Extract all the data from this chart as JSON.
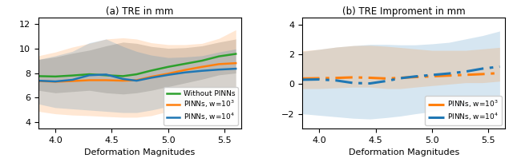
{
  "x": [
    3.85,
    4.0,
    4.15,
    4.3,
    4.45,
    4.6,
    4.72,
    4.85,
    5.0,
    5.15,
    5.3,
    5.45,
    5.6
  ],
  "panel_a": {
    "title": "(a) TRE in mm",
    "xlabel": "Deformation Magnitudes",
    "xlim": [
      3.85,
      5.65
    ],
    "ylim": [
      3.5,
      12.5
    ],
    "yticks": [
      4,
      6,
      8,
      10,
      12
    ],
    "xticks": [
      4.0,
      4.5,
      5.0,
      5.5
    ],
    "green_mean": [
      7.75,
      7.72,
      7.8,
      7.9,
      7.82,
      7.75,
      7.9,
      8.2,
      8.5,
      8.75,
      9.0,
      9.35,
      9.55
    ],
    "green_low": [
      6.6,
      6.4,
      6.5,
      6.6,
      6.4,
      6.3,
      6.4,
      6.6,
      6.9,
      7.2,
      7.5,
      7.85,
      8.0
    ],
    "green_high": [
      9.1,
      9.3,
      9.6,
      9.85,
      10.2,
      10.5,
      10.4,
      10.15,
      10.0,
      10.05,
      10.2,
      10.5,
      10.75
    ],
    "orange_mean": [
      7.35,
      7.3,
      7.35,
      7.42,
      7.42,
      7.38,
      7.42,
      7.7,
      7.95,
      8.25,
      8.5,
      8.72,
      8.8
    ],
    "orange_low": [
      4.9,
      4.7,
      4.6,
      4.55,
      4.48,
      4.42,
      4.42,
      4.55,
      4.9,
      5.3,
      5.7,
      5.9,
      6.1
    ],
    "orange_high": [
      9.4,
      9.7,
      10.1,
      10.4,
      10.75,
      10.85,
      10.75,
      10.45,
      10.3,
      10.3,
      10.4,
      10.8,
      11.5
    ],
    "blue_mean": [
      7.38,
      7.32,
      7.45,
      7.82,
      7.88,
      7.52,
      7.38,
      7.62,
      7.85,
      8.05,
      8.18,
      8.28,
      8.35
    ],
    "blue_low": [
      5.5,
      5.2,
      5.1,
      5.0,
      4.9,
      4.8,
      4.8,
      5.0,
      5.3,
      5.5,
      5.7,
      5.85,
      5.95
    ],
    "blue_high": [
      9.1,
      9.4,
      9.75,
      10.45,
      10.75,
      10.15,
      9.75,
      9.45,
      9.25,
      9.3,
      9.4,
      9.7,
      9.95
    ],
    "legend_labels": [
      "Without PINNs",
      "PINNs, w=10$^3$",
      "PINNs, w=10$^4$"
    ],
    "green_color": "#2ca02c",
    "orange_color": "#ff7f0e",
    "blue_color": "#1f77b4",
    "gray_fill": "#a0a0a0"
  },
  "panel_b": {
    "title": "(b) TRE Improment in mm",
    "xlabel": "Deformation Magnitudes",
    "xlim": [
      3.85,
      5.65
    ],
    "ylim": [
      -3.0,
      4.5
    ],
    "yticks": [
      -2,
      0,
      2,
      4
    ],
    "xticks": [
      4.0,
      4.5,
      5.0,
      5.5
    ],
    "orange_mean": [
      0.38,
      0.4,
      0.42,
      0.46,
      0.43,
      0.38,
      0.43,
      0.48,
      0.53,
      0.58,
      0.63,
      0.68,
      0.75
    ],
    "orange_low": [
      -0.3,
      -0.3,
      -0.25,
      -0.2,
      -0.2,
      -0.3,
      -0.3,
      -0.2,
      -0.1,
      0.0,
      0.1,
      0.1,
      0.2
    ],
    "orange_high": [
      2.25,
      2.35,
      2.5,
      2.6,
      2.62,
      2.55,
      2.47,
      2.38,
      2.28,
      2.28,
      2.28,
      2.38,
      2.48
    ],
    "blue_mean": [
      0.3,
      0.32,
      0.25,
      0.08,
      0.05,
      0.22,
      0.4,
      0.52,
      0.62,
      0.72,
      0.85,
      1.05,
      1.18
    ],
    "blue_low": [
      -2.0,
      -2.1,
      -2.2,
      -2.3,
      -2.35,
      -2.25,
      -2.15,
      -2.0,
      -1.85,
      -1.65,
      -1.45,
      -1.25,
      -1.1
    ],
    "blue_high": [
      2.2,
      2.35,
      2.5,
      2.6,
      2.68,
      2.68,
      2.65,
      2.65,
      2.72,
      2.82,
      3.05,
      3.28,
      3.58
    ],
    "legend_labels": [
      "PINNs, w=10$^3$",
      "PINNs, w=10$^4$"
    ],
    "orange_color": "#ff7f0e",
    "blue_color": "#1f77b4"
  }
}
